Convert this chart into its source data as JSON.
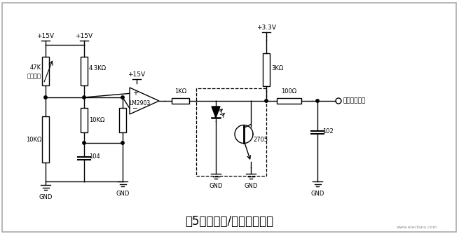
{
  "title": "图5输入过流/过载保护电路",
  "background_color": "#ffffff",
  "line_color": "#000000",
  "title_fontsize": 12,
  "watermark": "www.elecfans.com",
  "components": {
    "V15_left": "+15V",
    "R47K_line1": "47K",
    "R47K_line2": "热敏电阻",
    "R10K_left": "10KΩ",
    "C104": "104",
    "R4K3": "4.3KΩ",
    "R10K_right": "10KΩ",
    "V15_mid": "+15V",
    "GND_opamp": "GND",
    "LM2903": "LM2903",
    "R1K": "1KΩ",
    "GND_opto": "GND",
    "opto_label": "2705",
    "V33": "+3.3V",
    "R3K": "3KΩ",
    "GND_trans": "GND",
    "R100": "100Ω",
    "C102": "102",
    "GND_right": "GND",
    "output_label": "过热保护信号"
  }
}
